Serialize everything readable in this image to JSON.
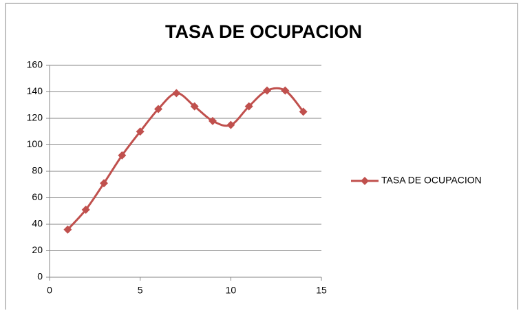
{
  "chart_data": {
    "type": "line",
    "title": "TASA DE OCUPACION",
    "x": [
      1,
      2,
      3,
      4,
      5,
      6,
      7,
      8,
      9,
      10,
      11,
      12,
      13,
      14
    ],
    "series": [
      {
        "name": "TASA DE OCUPACION",
        "color": "#c0504d",
        "values": [
          36,
          51,
          71,
          92,
          110,
          127,
          139,
          129,
          118,
          115,
          129,
          141,
          141,
          125
        ]
      }
    ],
    "xlim": [
      0,
      15
    ],
    "xticks": [
      0,
      5,
      10,
      15
    ],
    "ylim": [
      0,
      160
    ],
    "yticks": [
      0,
      20,
      40,
      60,
      80,
      100,
      120,
      140,
      160
    ],
    "grid": true,
    "smooth": true,
    "legend": "right"
  }
}
